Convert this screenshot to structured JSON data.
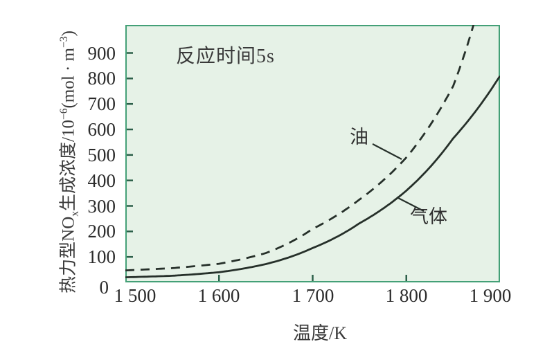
{
  "chart_data": {
    "type": "line",
    "title": "",
    "annotation": "反应时间5s",
    "xlabel": "温度/K",
    "ylabel": "热力型NOx生成浓度/10−6(mol · m−3)",
    "ylabel_rich": [
      "热力型NO",
      "x",
      "生成浓度/10",
      "−6",
      "(mol · m",
      "−3",
      ")"
    ],
    "xlim": [
      1500,
      1900
    ],
    "ylim": [
      0,
      1010
    ],
    "x_ticks": [
      "1 500",
      "1 600",
      "1 700",
      "1 800",
      "1 900"
    ],
    "x_tick_values": [
      1500,
      1600,
      1700,
      1800,
      1900
    ],
    "y_ticks": [
      "0",
      "100",
      "200",
      "300",
      "400",
      "500",
      "600",
      "700",
      "800",
      "900"
    ],
    "y_tick_values": [
      0,
      100,
      200,
      300,
      400,
      500,
      600,
      700,
      800,
      900
    ],
    "grid": false,
    "legend_position": "inline-callouts",
    "series": [
      {
        "name": "油",
        "style": "dashed",
        "x": [
          1500,
          1550,
          1600,
          1650,
          1700,
          1750,
          1800,
          1850,
          1880
        ],
        "values": [
          47,
          56,
          73,
          115,
          210,
          325,
          490,
          770,
          1120
        ]
      },
      {
        "name": "气体",
        "style": "solid",
        "x": [
          1500,
          1550,
          1600,
          1650,
          1700,
          1750,
          1800,
          1850,
          1900
        ],
        "values": [
          20,
          26,
          40,
          72,
          135,
          232,
          360,
          565,
          810
        ]
      }
    ],
    "colors": {
      "plot_bg": "#e6f2e7",
      "plot_border": "#44a077",
      "tick": "#2c5f49",
      "curve": "#26302a",
      "text": "#2e2e2e"
    }
  }
}
